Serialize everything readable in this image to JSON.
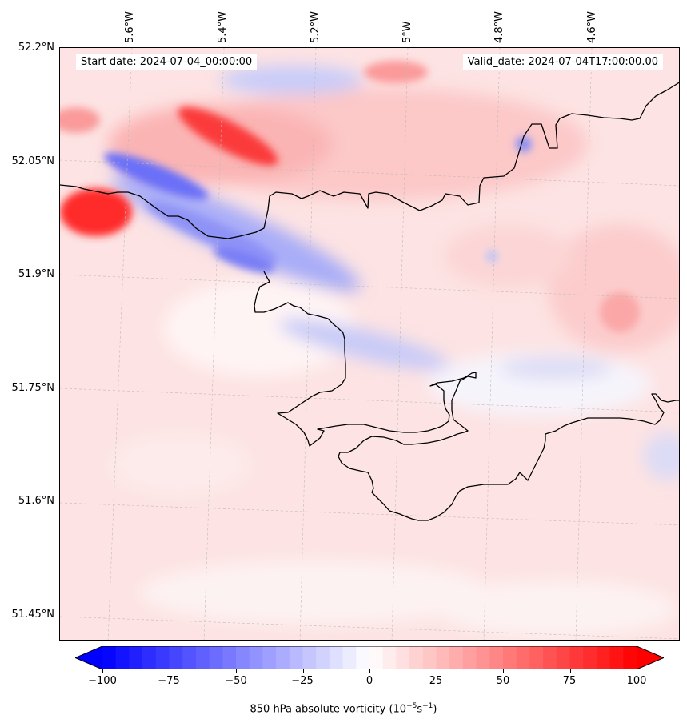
{
  "map": {
    "start_label": "Start date: 2024-07-04_00:00:00",
    "valid_label": "Valid_date: 2024-07-04T17:00:00.00",
    "lon_labels": [
      "5.6°W",
      "5.4°W",
      "5.2°W",
      "5°W",
      "4.8°W",
      "4.6°W"
    ],
    "lat_labels": [
      "52.2°N",
      "52.05°N",
      "51.9°N",
      "51.75°N",
      "51.6°N",
      "51.45°N"
    ]
  },
  "colorbar": {
    "ticks": [
      "−100",
      "−75",
      "−50",
      "−25",
      "0",
      "25",
      "50",
      "75",
      "100"
    ],
    "label_text": "850 hPa absolute vorticity (10",
    "label_exp1": "−5",
    "label_mid": "s",
    "label_exp2": "−1",
    "label_end": ")",
    "min": -100,
    "max": 100,
    "low_color": "#0000ff",
    "high_color": "#ff0000"
  },
  "colors": {
    "coastline": "#000000",
    "grid": "#bbbbbb"
  }
}
